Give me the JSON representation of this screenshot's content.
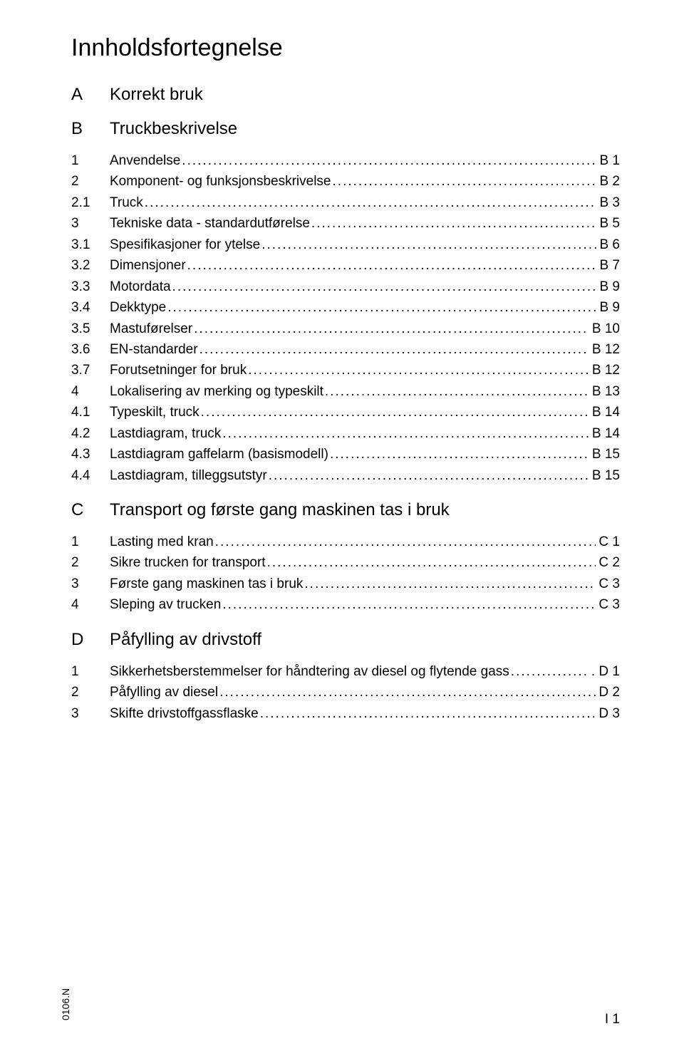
{
  "title": "Innholdsfortegnelse",
  "sections": [
    {
      "letter": "A",
      "name": "Korrekt bruk",
      "entries": []
    },
    {
      "letter": "B",
      "name": "Truckbeskrivelse",
      "entries": [
        {
          "num": "1",
          "label": "Anvendelse",
          "page": "B 1"
        },
        {
          "num": "2",
          "label": "Komponent- og funksjonsbeskrivelse",
          "page": "B 2"
        },
        {
          "num": "2.1",
          "label": "Truck",
          "page": "B 3"
        },
        {
          "num": "3",
          "label": "Tekniske data - standardutførelse",
          "page": "B 5"
        },
        {
          "num": "3.1",
          "label": "Spesifikasjoner for ytelse",
          "page": "B 6"
        },
        {
          "num": "3.2",
          "label": "Dimensjoner",
          "page": "B 7"
        },
        {
          "num": "3.3",
          "label": "Motordata",
          "page": "B 9"
        },
        {
          "num": "3.4",
          "label": "Dekktype",
          "page": "B 9"
        },
        {
          "num": "3.5",
          "label": "Mastuførelser",
          "page": "B 10"
        },
        {
          "num": "3.6",
          "label": "EN-standarder",
          "page": "B 12"
        },
        {
          "num": "3.7",
          "label": "Forutsetninger for bruk",
          "page": "B 12"
        },
        {
          "num": "4",
          "label": "Lokalisering av merking og typeskilt",
          "page": "B 13"
        },
        {
          "num": "4.1",
          "label": "Typeskilt, truck",
          "page": "B 14"
        },
        {
          "num": "4.2",
          "label": "Lastdiagram, truck",
          "page": "B 14"
        },
        {
          "num": "4.3",
          "label": "Lastdiagram gaffelarm (basismodell)",
          "page": "B 15"
        },
        {
          "num": "4.4",
          "label": "Lastdiagram, tilleggsutstyr",
          "page": "B 15"
        }
      ]
    },
    {
      "letter": "C",
      "name": "Transport og første gang maskinen tas i bruk",
      "entries": [
        {
          "num": "1",
          "label": "Lasting med kran",
          "page": "C 1"
        },
        {
          "num": "2",
          "label": "Sikre trucken for transport",
          "page": "C 2"
        },
        {
          "num": "3",
          "label": "Første gang maskinen tas i bruk",
          "page": "C 3"
        },
        {
          "num": "4",
          "label": "Sleping av trucken",
          "page": "C 3"
        }
      ]
    },
    {
      "letter": "D",
      "name": "Påfylling av drivstoff",
      "entries": [
        {
          "num": "1",
          "label": "Sikkerhetsberstemmelser for håndtering av diesel og flytende gass",
          "page": ". D 1"
        },
        {
          "num": "2",
          "label": "Påfylling av diesel",
          "page": "D 2"
        },
        {
          "num": "3",
          "label": "Skifte drivstoffgassflaske",
          "page": "D 3"
        }
      ]
    }
  ],
  "footer": {
    "code": "0106.N",
    "page": "I 1"
  }
}
